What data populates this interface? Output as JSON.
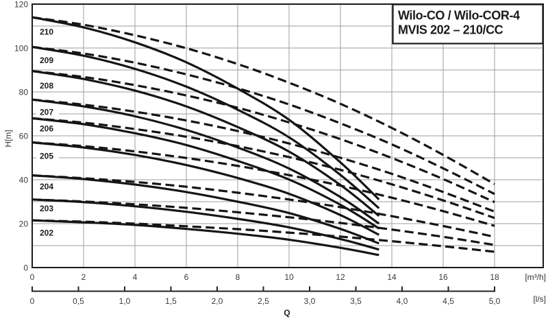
{
  "title": {
    "line1": "Wilo-CO / Wilo-COR-4",
    "line2": "MVIS 202 – 210/CC"
  },
  "axes": {
    "y_label": "H[m]",
    "y_ticks": [
      0,
      20,
      40,
      60,
      80,
      100,
      120
    ],
    "x_primary_unit": "[m³/h]",
    "x_primary_ticks": [
      0,
      2,
      4,
      6,
      8,
      10,
      12,
      14,
      16,
      18
    ],
    "x_secondary_unit": "[l/s]",
    "x_secondary_ticks": [
      "0",
      "0,5",
      "1,0",
      "1,5",
      "2,0",
      "2,5",
      "3,0",
      "3,5",
      "4,0",
      "4,5",
      "5,0"
    ],
    "x_secondary_values": [
      0,
      0.5,
      1.0,
      1.5,
      2.0,
      2.5,
      3.0,
      3.5,
      4.0,
      4.5,
      5.0
    ],
    "x_axis_label": "Q"
  },
  "colors": {
    "curve": "#151515",
    "grid": "#9e9e9e",
    "border": "#1a1a1a",
    "axis_text": "#3a3a3a",
    "background": "#ffffff"
  },
  "chart_data": {
    "type": "line",
    "title": "Wilo-CO / Wilo-COR-4 MVIS 202 – 210/CC",
    "xlabel": "Q",
    "ylabel": "H[m]",
    "x_unit_primary": "m³/h",
    "x_unit_secondary": "l/s",
    "xlim_m3h": [
      0,
      19.9
    ],
    "ylim": [
      0,
      120
    ],
    "grid": {
      "x_step_m3h": 2,
      "y_step": 10,
      "shown": true
    },
    "legend_position": "none",
    "q_solid": [
      0,
      2,
      4,
      6,
      8,
      10,
      12,
      13.5
    ],
    "q_dashed": [
      0,
      2,
      4,
      6,
      8,
      10,
      12,
      14,
      16,
      18
    ],
    "series": [
      {
        "label": "210",
        "h0": 114,
        "solid": [
          114,
          109.4,
          102.6,
          93.5,
          81.5,
          67.3,
          47.9,
          31
        ],
        "dashed": [
          114,
          110.6,
          105.8,
          99.9,
          92.7,
          84.2,
          74.6,
          63.6,
          51.3,
          38
        ],
        "label_h": 107.5
      },
      {
        "label": "209",
        "h0": 100.5,
        "solid": [
          100.5,
          96.5,
          90.5,
          82.4,
          71.9,
          59.3,
          42.2,
          27
        ],
        "dashed": [
          100.5,
          97.5,
          93.3,
          88,
          81.7,
          74.3,
          65.7,
          56.1,
          45.2,
          33.5
        ],
        "label_h": 94.5
      },
      {
        "label": "208",
        "h0": 89.5,
        "solid": [
          89.5,
          85.9,
          80.6,
          73.4,
          64,
          52.8,
          37.6,
          23.5
        ],
        "dashed": [
          89.5,
          86.8,
          83.1,
          78.4,
          72.8,
          66.1,
          58.5,
          49.9,
          40.3,
          29.8
        ],
        "label_h": 83
      },
      {
        "label": "207",
        "h0": 76.5,
        "solid": [
          76.5,
          73.4,
          68.9,
          62.7,
          54.7,
          45.1,
          32.1,
          20
        ],
        "dashed": [
          76.5,
          74.2,
          71,
          67,
          62.2,
          56.5,
          50,
          42.7,
          34.4,
          25.5
        ],
        "label_h": 71
      },
      {
        "label": "206",
        "h0": 68,
        "solid": [
          68,
          65.3,
          61.2,
          55.8,
          48.6,
          40.1,
          28.6,
          17.8
        ],
        "dashed": [
          68,
          66,
          63.1,
          59.6,
          55.3,
          50.3,
          44.5,
          37.9,
          30.6,
          22.6
        ],
        "label_h": 63.5
      },
      {
        "label": "205",
        "h0": 57,
        "solid": [
          57,
          54.7,
          51.3,
          46.7,
          40.8,
          33.6,
          23.9,
          14.9
        ],
        "dashed": [
          57,
          55.3,
          52.9,
          49.9,
          46.3,
          42.1,
          37.3,
          31.8,
          25.7,
          19
        ],
        "label_h": 51
      },
      {
        "label": "204",
        "h0": 42,
        "solid": [
          42,
          40.3,
          37.8,
          34.4,
          30,
          24.8,
          17.6,
          11
        ],
        "dashed": [
          42,
          40.7,
          39,
          36.8,
          34.1,
          31,
          27.5,
          23.4,
          18.9,
          14
        ],
        "label_h": 37
      },
      {
        "label": "203",
        "h0": 31,
        "solid": [
          31,
          29.8,
          27.9,
          25.4,
          22.2,
          18.3,
          13,
          8.2
        ],
        "dashed": [
          31,
          30.1,
          28.8,
          27.2,
          25.2,
          22.9,
          20.3,
          17.3,
          14,
          10.3
        ],
        "label_h": 27
      },
      {
        "label": "202",
        "h0": 21.5,
        "solid": [
          21.5,
          20.6,
          19.4,
          17.6,
          15.4,
          12.7,
          9,
          5.7
        ],
        "dashed": [
          21.5,
          20.9,
          20,
          18.8,
          17.5,
          15.9,
          14.1,
          12,
          9.7,
          7.2
        ],
        "label_h": 16
      }
    ]
  }
}
